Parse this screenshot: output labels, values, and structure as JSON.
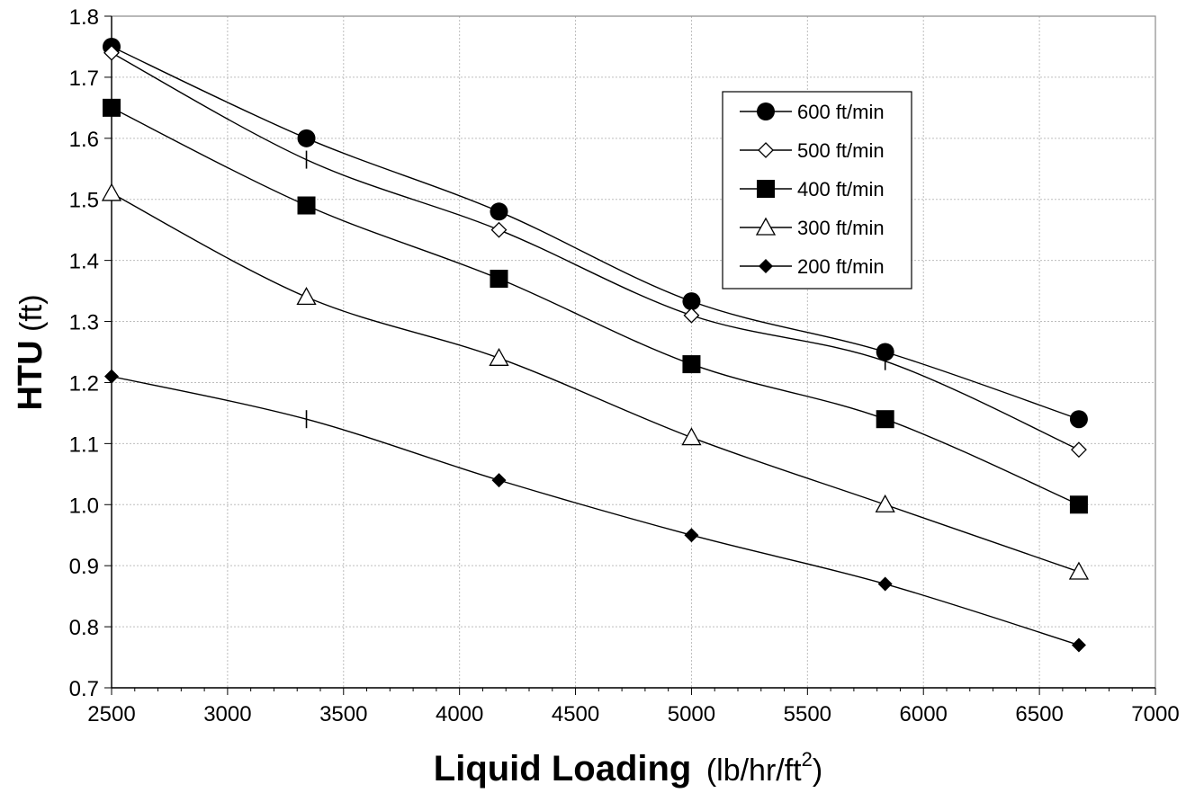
{
  "chart_data": {
    "type": "line",
    "xlabel_main": "Liquid Loading",
    "xlabel_unit": "(lb/hr/ft",
    "xlabel_sup": "2",
    "xlabel_close": ")",
    "ylabel_main": "HTU",
    "ylabel_unit": " (ft)",
    "xlim": [
      2500,
      7000
    ],
    "ylim": [
      0.7,
      1.8
    ],
    "xticks": [
      2500,
      3000,
      3500,
      4000,
      4500,
      5000,
      5500,
      6000,
      6500,
      7000
    ],
    "yticks": [
      0.7,
      0.8,
      0.9,
      1.0,
      1.1,
      1.2,
      1.3,
      1.4,
      1.5,
      1.6,
      1.7,
      1.8
    ],
    "ytick_labels": [
      "0.7",
      "0.8",
      "0.9",
      "1.0",
      "1.1",
      "1.2",
      "1.3",
      "1.4",
      "1.5",
      "1.6",
      "1.7",
      "1.8"
    ],
    "grid": true,
    "legend_position": "top-right",
    "x": [
      2500,
      3340,
      4170,
      5000,
      5835,
      6670
    ],
    "series": [
      {
        "name": "600 ft/min",
        "marker": "circle-filled",
        "values": [
          1.75,
          1.6,
          1.48,
          1.333,
          1.25,
          1.14
        ]
      },
      {
        "name": "500 ft/min",
        "marker": "diamond-open",
        "values": [
          1.74,
          1.565,
          1.45,
          1.31,
          1.235,
          1.09
        ]
      },
      {
        "name": "400 ft/min",
        "marker": "square-filled",
        "values": [
          1.65,
          1.49,
          1.37,
          1.23,
          1.14,
          1.0
        ]
      },
      {
        "name": "300 ft/min",
        "marker": "triangle-open",
        "values": [
          1.51,
          1.34,
          1.24,
          1.11,
          1.0,
          0.89
        ]
      },
      {
        "name": "200 ft/min",
        "marker": "diamond-filled",
        "values": [
          1.21,
          1.14,
          1.04,
          0.95,
          0.87,
          0.77
        ]
      }
    ],
    "marker_gaps": [
      {
        "series": "500 ft/min",
        "index": 1
      },
      {
        "series": "500 ft/min",
        "index": 4
      },
      {
        "series": "200 ft/min",
        "index": 1
      }
    ]
  }
}
